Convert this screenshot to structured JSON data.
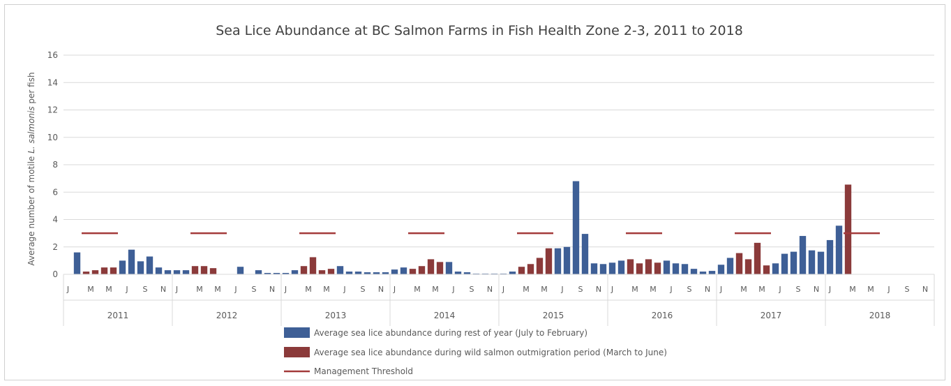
{
  "chart_data": {
    "type": "bar",
    "title": "Sea Lice Abundance at BC Salmon Farms in Fish Health Zone 2-3, 2011 to 2018",
    "ylabel_parts": [
      "Average number of motile ",
      "L. salmonis",
      " per fish"
    ],
    "ylim": [
      0,
      16
    ],
    "yticks": [
      0,
      2,
      4,
      6,
      8,
      10,
      12,
      14,
      16
    ],
    "grid": true,
    "legend_position": "bottom",
    "month_tick_labels": [
      "J",
      "M",
      "M",
      "J",
      "S",
      "N"
    ],
    "years": [
      "2011",
      "2012",
      "2013",
      "2014",
      "2015",
      "2016",
      "2017",
      "2018"
    ],
    "series": [
      {
        "name": "Average sea lice abundance during rest of year (July to February)",
        "color": "#3e5f96",
        "values": [
          0.0,
          1.6,
          null,
          null,
          null,
          null,
          1.0,
          1.8,
          0.95,
          1.3,
          0.5,
          0.3,
          0.3,
          0.3,
          null,
          null,
          null,
          null,
          0.0,
          0.55,
          0.0,
          0.3,
          0.1,
          0.1,
          0.1,
          0.3,
          null,
          null,
          null,
          null,
          0.6,
          0.2,
          0.2,
          0.15,
          0.15,
          0.15,
          0.35,
          0.5,
          null,
          null,
          null,
          null,
          0.9,
          0.2,
          0.15,
          0.05,
          0.05,
          0.05,
          0.05,
          0.2,
          null,
          null,
          null,
          null,
          1.9,
          2.0,
          6.8,
          2.95,
          0.8,
          0.75,
          0.85,
          1.0,
          null,
          null,
          null,
          null,
          1.0,
          0.8,
          0.75,
          0.4,
          0.2,
          0.25,
          0.7,
          1.2,
          null,
          null,
          null,
          null,
          0.8,
          1.5,
          1.65,
          2.8,
          1.75,
          1.65,
          2.5,
          3.55,
          null,
          null,
          null,
          null,
          null,
          null,
          null,
          null,
          null,
          null
        ]
      },
      {
        "name": "Average sea lice abundance during wild salmon outmigration period (March to June)",
        "color": "#8b3a3a",
        "values": [
          null,
          null,
          0.2,
          0.3,
          0.5,
          0.5,
          null,
          null,
          null,
          null,
          null,
          null,
          null,
          null,
          0.6,
          0.6,
          0.45,
          0.0,
          null,
          null,
          null,
          null,
          null,
          null,
          null,
          null,
          0.6,
          1.25,
          0.3,
          0.4,
          null,
          null,
          null,
          null,
          null,
          null,
          null,
          null,
          0.4,
          0.6,
          1.1,
          0.9,
          null,
          null,
          null,
          null,
          null,
          null,
          null,
          null,
          0.55,
          0.75,
          1.2,
          1.9,
          null,
          null,
          null,
          null,
          null,
          null,
          null,
          null,
          1.1,
          0.8,
          1.1,
          0.85,
          null,
          null,
          null,
          null,
          null,
          null,
          null,
          null,
          1.55,
          1.1,
          2.3,
          0.65,
          null,
          null,
          null,
          null,
          null,
          null,
          null,
          null,
          6.55,
          null,
          null,
          null,
          null,
          null,
          null,
          null,
          null,
          null
        ]
      }
    ],
    "threshold": {
      "name": "Management Threshold",
      "color": "#a33a3a",
      "value": 3,
      "months": [
        "March",
        "April",
        "May",
        "June"
      ]
    }
  }
}
